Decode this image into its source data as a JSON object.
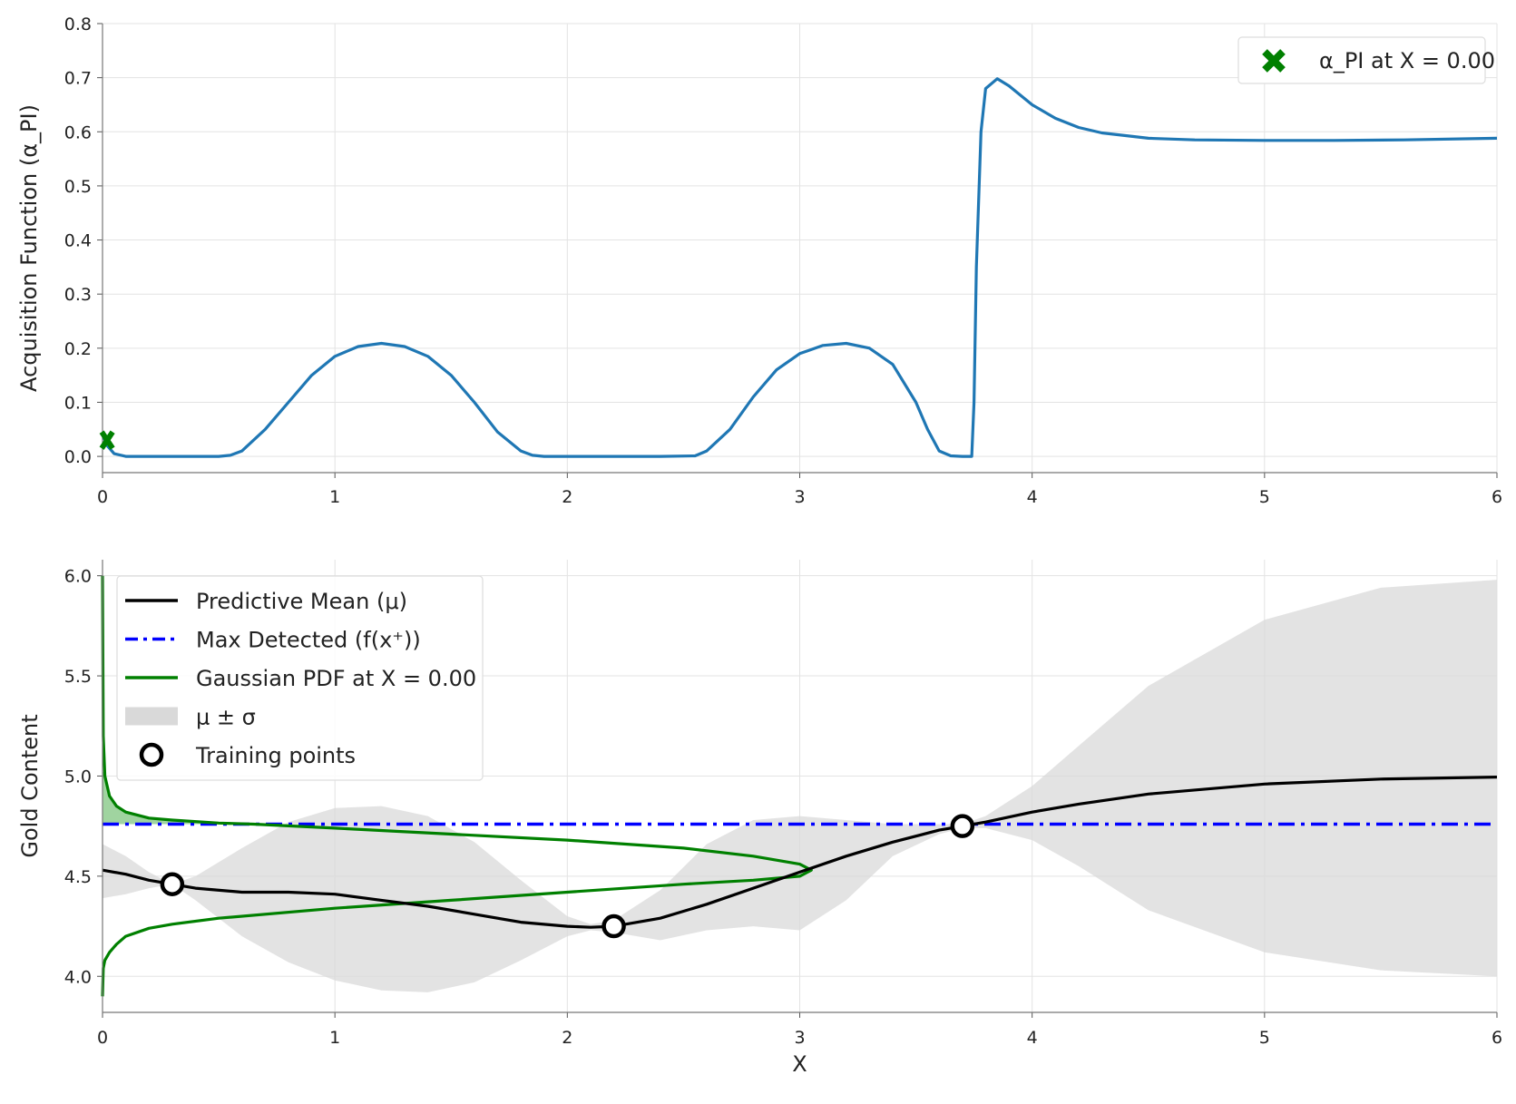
{
  "chart_data": [
    {
      "type": "line",
      "title": "",
      "xlabel": "",
      "ylabel": "Acquisition Function (α_PI)",
      "xlim": [
        0,
        6
      ],
      "ylim": [
        -0.03,
        0.8
      ],
      "xticks": [
        "0",
        "1",
        "2",
        "3",
        "4",
        "5",
        "6"
      ],
      "yticks": [
        "0.0",
        "0.1",
        "0.2",
        "0.3",
        "0.4",
        "0.5",
        "0.6",
        "0.7",
        "0.8"
      ],
      "grid": true,
      "legend_position": "top-right",
      "series": [
        {
          "name": "",
          "color": "#1f77b4",
          "x": [
            0,
            0.02,
            0.05,
            0.1,
            0.3,
            0.5,
            0.55,
            0.6,
            0.7,
            0.8,
            0.9,
            1.0,
            1.1,
            1.2,
            1.3,
            1.4,
            1.5,
            1.6,
            1.7,
            1.8,
            1.85,
            1.9,
            2.0,
            2.2,
            2.4,
            2.55,
            2.6,
            2.7,
            2.8,
            2.9,
            3.0,
            3.1,
            3.2,
            3.3,
            3.4,
            3.5,
            3.55,
            3.6,
            3.65,
            3.7,
            3.74,
            3.75,
            3.76,
            3.78,
            3.8,
            3.85,
            3.9,
            4.0,
            4.1,
            4.2,
            4.3,
            4.5,
            4.7,
            5.0,
            5.3,
            5.6,
            6.0
          ],
          "y": [
            0.04,
            0.02,
            0.005,
            0.0,
            0.0,
            0.0,
            0.002,
            0.01,
            0.05,
            0.1,
            0.15,
            0.185,
            0.203,
            0.209,
            0.203,
            0.185,
            0.15,
            0.1,
            0.045,
            0.01,
            0.002,
            0.0,
            0.0,
            0.0,
            0.0,
            0.001,
            0.01,
            0.05,
            0.11,
            0.16,
            0.19,
            0.205,
            0.209,
            0.2,
            0.17,
            0.1,
            0.05,
            0.01,
            0.001,
            0.0,
            0.0,
            0.1,
            0.35,
            0.6,
            0.68,
            0.698,
            0.685,
            0.65,
            0.625,
            0.608,
            0.598,
            0.588,
            0.585,
            0.584,
            0.584,
            0.585,
            0.588
          ]
        }
      ],
      "marker": {
        "label": "α_PI at X = 0.00",
        "x": 0.02,
        "y": 0.03,
        "color": "#008000",
        "shape": "X"
      }
    },
    {
      "type": "line",
      "title": "",
      "xlabel": "X",
      "ylabel": "Gold Content",
      "xlim": [
        0,
        6
      ],
      "ylim": [
        3.82,
        6.08
      ],
      "xticks": [
        "0",
        "1",
        "2",
        "3",
        "4",
        "5",
        "6"
      ],
      "yticks": [
        "4.0",
        "4.5",
        "5.0",
        "5.5",
        "6.0"
      ],
      "grid": true,
      "legend_position": "top-left",
      "max_detected": 4.76,
      "series": [
        {
          "name": "Predictive Mean (μ)",
          "color": "#000000",
          "x": [
            0,
            0.1,
            0.2,
            0.3,
            0.4,
            0.6,
            0.8,
            1.0,
            1.2,
            1.4,
            1.6,
            1.8,
            2.0,
            2.1,
            2.2,
            2.4,
            2.6,
            2.8,
            3.0,
            3.2,
            3.4,
            3.6,
            3.7,
            3.8,
            4.0,
            4.2,
            4.5,
            5.0,
            5.5,
            6.0
          ],
          "y": [
            4.53,
            4.51,
            4.48,
            4.46,
            4.44,
            4.42,
            4.42,
            4.41,
            4.38,
            4.35,
            4.31,
            4.27,
            4.25,
            4.245,
            4.25,
            4.29,
            4.36,
            4.44,
            4.52,
            4.6,
            4.67,
            4.73,
            4.75,
            4.77,
            4.82,
            4.86,
            4.91,
            4.96,
            4.985,
            4.995
          ]
        },
        {
          "name": "μ ± σ",
          "color": "#d9d9d9",
          "x": [
            0,
            0.1,
            0.2,
            0.3,
            0.4,
            0.6,
            0.8,
            1.0,
            1.2,
            1.4,
            1.6,
            1.8,
            2.0,
            2.1,
            2.2,
            2.4,
            2.6,
            2.8,
            3.0,
            3.2,
            3.4,
            3.6,
            3.7,
            3.8,
            4.0,
            4.2,
            4.5,
            5.0,
            5.5,
            6.0
          ],
          "upper": [
            4.66,
            4.6,
            4.52,
            4.46,
            4.5,
            4.64,
            4.77,
            4.84,
            4.85,
            4.8,
            4.67,
            4.48,
            4.3,
            4.26,
            4.28,
            4.43,
            4.66,
            4.78,
            4.8,
            4.78,
            4.76,
            4.76,
            4.76,
            4.8,
            4.95,
            5.15,
            5.45,
            5.78,
            5.94,
            5.98
          ],
          "lower": [
            4.39,
            4.41,
            4.44,
            4.46,
            4.38,
            4.2,
            4.07,
            3.98,
            3.93,
            3.92,
            3.97,
            4.08,
            4.2,
            4.23,
            4.22,
            4.18,
            4.23,
            4.25,
            4.23,
            4.38,
            4.6,
            4.71,
            4.74,
            4.74,
            4.68,
            4.55,
            4.33,
            4.12,
            4.03,
            4.0
          ]
        },
        {
          "name": "Gaussian PDF at X = 0.00",
          "color": "#008000",
          "x": [
            0,
            0.003,
            0.01,
            0.03,
            0.06,
            0.1,
            0.2,
            0.3,
            0.5,
            0.65,
            1.0,
            1.5,
            2.0,
            2.5,
            2.8,
            3.0,
            3.05,
            3.0,
            2.8,
            2.5,
            2.0,
            1.5,
            1.0,
            0.5,
            0.3,
            0.2,
            0.1,
            0.06,
            0.03,
            0.01,
            0.003,
            0
          ],
          "y": [
            6.0,
            5.2,
            5.0,
            4.9,
            4.85,
            4.82,
            4.79,
            4.78,
            4.765,
            4.76,
            4.74,
            4.71,
            4.68,
            4.64,
            4.6,
            4.56,
            4.53,
            4.5,
            4.48,
            4.46,
            4.42,
            4.38,
            4.34,
            4.29,
            4.26,
            4.24,
            4.2,
            4.16,
            4.12,
            4.08,
            4.04,
            3.9
          ]
        }
      ],
      "legend": [
        {
          "label": "Predictive Mean (μ)",
          "kind": "line",
          "color": "#000000"
        },
        {
          "label": "Max Detected (f(x⁺))",
          "kind": "dashdot",
          "color": "#0000ff"
        },
        {
          "label": "Gaussian PDF at X = 0.00",
          "kind": "line",
          "color": "#008000"
        },
        {
          "label": "μ ± σ",
          "kind": "patch",
          "color": "#d9d9d9"
        },
        {
          "label": "Training points",
          "kind": "circle",
          "color": "#000000"
        }
      ],
      "training_points": {
        "x": [
          0.3,
          2.2,
          3.7
        ],
        "y": [
          4.46,
          4.25,
          4.75
        ]
      }
    }
  ]
}
